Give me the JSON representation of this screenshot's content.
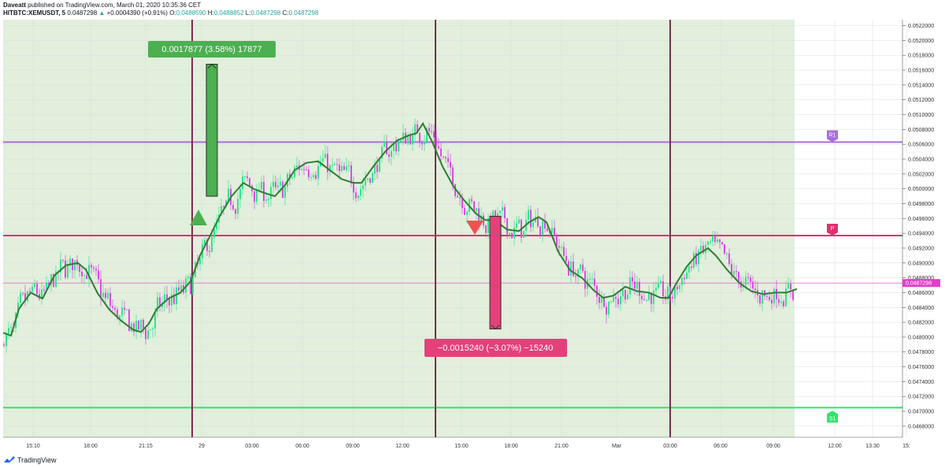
{
  "header": {
    "author": "Daveatt",
    "published_text": "published on TradingView.com, March 01, 2020 10:35:36 CET",
    "symbol": "HITBTC:XEMUSDT, 5",
    "last": "0.0487298",
    "up_arrow": "▲",
    "change": "+0.0004390 (+0.91%)",
    "o_label": "O:",
    "o_value": "0.0488590",
    "h_label": "H:",
    "h_value": "0.0488852",
    "l_label": "L:",
    "l_value": "0.0487298",
    "c_label": "C:",
    "c_value": "0.0487298"
  },
  "footer": {
    "logo_text": "TradingView",
    "logo_icon": "tradingview-logo-icon"
  },
  "colors": {
    "session_bg": "#e2efdc",
    "bull": "#2ee58a",
    "bear": "#d94ce3",
    "ma": "#2e7d32",
    "r1": "#a86fd8",
    "pivot": "#e0306f",
    "s1": "#2ee56b",
    "session_line": "#7a2e4c",
    "gain_box": "#4caf50",
    "loss_box": "#e5407a",
    "last_price": "#e040c8"
  },
  "chart_data": {
    "type": "candlestick",
    "title": "",
    "xlabel": "",
    "ylabel": "",
    "ylim": [
      0.04665,
      0.05228
    ],
    "x_ticks": [
      "15:10",
      "18:00",
      "21:15",
      "29",
      "03:00",
      "06:00",
      "09:00",
      "12:00",
      "15:00",
      "18:00",
      "21:00",
      "Mar",
      "03:00",
      "06:00",
      "09:00",
      "12:00",
      "13:30",
      "15:"
    ],
    "y_ticks": [
      "0.0522000",
      "0.0520000",
      "0.0518000",
      "0.0516000",
      "0.0514000",
      "0.0512000",
      "0.0510000",
      "0.0508000",
      "0.0506000",
      "0.0504000",
      "0.0502000",
      "0.0500000",
      "0.0498000",
      "0.0496000",
      "0.0494000",
      "0.0492000",
      "0.0490000",
      "0.0488000",
      "0.0486000",
      "0.0484000",
      "0.0482000",
      "0.0480000",
      "0.0478000",
      "0.0476000",
      "0.0474000",
      "0.0472000",
      "0.0470000",
      "0.0468000"
    ],
    "last_price": "0.0487298",
    "levels": [
      {
        "label": "R1",
        "value": 0.05063
      },
      {
        "label": "P",
        "value": 0.04937
      },
      {
        "label": "S1",
        "value": 0.04705
      }
    ],
    "moving_average": [
      [
        0,
        0.04806
      ],
      [
        10,
        0.04802
      ],
      [
        20,
        0.04838
      ],
      [
        35,
        0.0486
      ],
      [
        50,
        0.04852
      ],
      [
        65,
        0.04883
      ],
      [
        80,
        0.04897
      ],
      [
        95,
        0.049
      ],
      [
        105,
        0.04891
      ],
      [
        120,
        0.04859
      ],
      [
        135,
        0.04837
      ],
      [
        150,
        0.04822
      ],
      [
        165,
        0.0481
      ],
      [
        175,
        0.04807
      ],
      [
        185,
        0.04818
      ],
      [
        195,
        0.04838
      ],
      [
        210,
        0.04852
      ],
      [
        225,
        0.0486
      ],
      [
        238,
        0.04875
      ],
      [
        250,
        0.0491
      ],
      [
        262,
        0.04935
      ],
      [
        275,
        0.04963
      ],
      [
        290,
        0.0499
      ],
      [
        305,
        0.05008
      ],
      [
        318,
        0.05
      ],
      [
        330,
        0.04995
      ],
      [
        345,
        0.0499
      ],
      [
        358,
        0.05005
      ],
      [
        370,
        0.05025
      ],
      [
        385,
        0.05035
      ],
      [
        400,
        0.05037
      ],
      [
        415,
        0.05025
      ],
      [
        430,
        0.05013
      ],
      [
        445,
        0.05008
      ],
      [
        455,
        0.05008
      ],
      [
        470,
        0.0503
      ],
      [
        485,
        0.0505
      ],
      [
        500,
        0.05065
      ],
      [
        515,
        0.05072
      ],
      [
        525,
        0.05075
      ],
      [
        533,
        0.05088
      ],
      [
        545,
        0.05063
      ],
      [
        558,
        0.0503
      ],
      [
        572,
        0.05003
      ],
      [
        585,
        0.04985
      ],
      [
        600,
        0.04967
      ],
      [
        612,
        0.04958
      ],
      [
        625,
        0.04957
      ],
      [
        640,
        0.04945
      ],
      [
        655,
        0.04943
      ],
      [
        668,
        0.04955
      ],
      [
        680,
        0.04962
      ],
      [
        690,
        0.04955
      ],
      [
        705,
        0.04915
      ],
      [
        720,
        0.0489
      ],
      [
        735,
        0.0488
      ],
      [
        750,
        0.04863
      ],
      [
        762,
        0.04853
      ],
      [
        775,
        0.04856
      ],
      [
        790,
        0.04868
      ],
      [
        805,
        0.04862
      ],
      [
        820,
        0.0486
      ],
      [
        835,
        0.04853
      ],
      [
        845,
        0.04853
      ],
      [
        855,
        0.04873
      ],
      [
        868,
        0.04895
      ],
      [
        880,
        0.0491
      ],
      [
        895,
        0.0492
      ],
      [
        905,
        0.0491
      ],
      [
        920,
        0.0489
      ],
      [
        935,
        0.04873
      ],
      [
        950,
        0.04862
      ],
      [
        965,
        0.04858
      ],
      [
        980,
        0.0486
      ],
      [
        995,
        0.0486
      ],
      [
        1008,
        0.04865
      ]
    ],
    "session_separators": [
      "29",
      "15:00",
      "Mar"
    ],
    "annotations": [
      {
        "kind": "gain",
        "text": "0.0017877 (3.58%) 17877",
        "from": 0.0499,
        "to": 0.05168,
        "marker": "buy"
      },
      {
        "kind": "loss",
        "text": "−0.0015240 (−3.07%) −15240",
        "from": 0.04963,
        "to": 0.04811,
        "marker": "sell"
      }
    ]
  }
}
